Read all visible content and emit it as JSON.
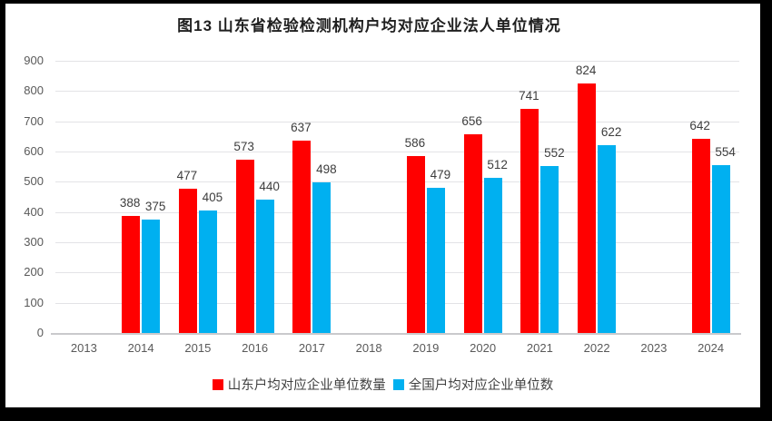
{
  "chart_data": {
    "type": "bar",
    "title": "图13 山东省检验检测机构户均对应企业法人单位情况",
    "categories": [
      "2013",
      "2014",
      "2015",
      "2016",
      "2017",
      "2018",
      "2019",
      "2020",
      "2021",
      "2022",
      "2023",
      "2024"
    ],
    "series": [
      {
        "name": "山东户均对应企业单位数量",
        "color": "#ff0000",
        "values": [
          null,
          388,
          477,
          573,
          637,
          null,
          586,
          656,
          741,
          824,
          null,
          642
        ]
      },
      {
        "name": "全国户均对应企业单位数",
        "color": "#00b0f0",
        "values": [
          null,
          375,
          405,
          440,
          498,
          null,
          479,
          512,
          552,
          622,
          null,
          554
        ]
      }
    ],
    "ylim": [
      0,
      900
    ],
    "ytick_step": 100,
    "grid": true,
    "legend_position": "bottom",
    "data_labels": true
  },
  "style": {
    "grid_color": "#e3e3e6",
    "axis_color": "#c9c9cc",
    "tick_text_color": "#595959",
    "value_label_color": "#3d3d3d",
    "frame_color": "#000000",
    "background_color": "#ffffff"
  }
}
